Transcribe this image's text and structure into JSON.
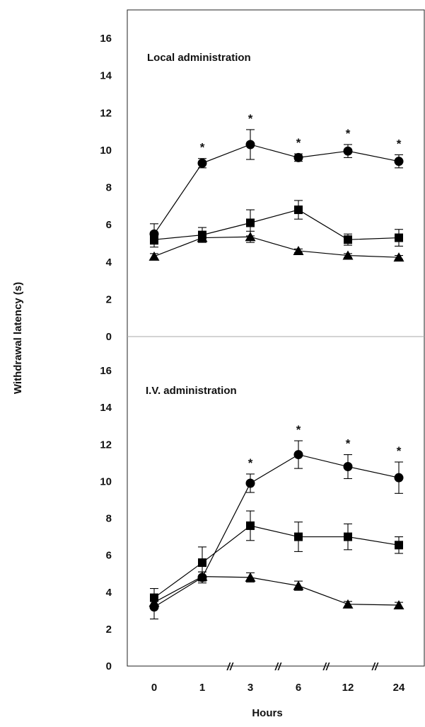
{
  "chart_data": {
    "type": "line",
    "xlabel": "Hours",
    "ylabel": "Withdrawal latency (s)",
    "categories": [
      "0",
      "1",
      "3",
      "6",
      "12",
      "24"
    ],
    "axis_break_marks": [
      "//",
      "//",
      "//",
      "//"
    ],
    "panels": [
      {
        "title": "Local administration",
        "ylim": [
          0,
          16
        ],
        "yticks": [
          0,
          2,
          4,
          6,
          8,
          10,
          12,
          14,
          16
        ],
        "series": [
          {
            "marker": "circle",
            "values": [
              5.5,
              9.3,
              10.3,
              9.6,
              9.95,
              9.4
            ],
            "err": [
              0.55,
              0.25,
              0.8,
              0.2,
              0.35,
              0.35
            ]
          },
          {
            "marker": "square",
            "values": [
              5.2,
              5.45,
              6.1,
              6.8,
              5.2,
              5.3
            ],
            "err": [
              0.4,
              0.4,
              0.7,
              0.5,
              0.3,
              0.45
            ]
          },
          {
            "marker": "triangle",
            "values": [
              4.3,
              5.3,
              5.35,
              4.6,
              4.35,
              4.25
            ],
            "err": [
              0.15,
              0.2,
              0.3,
              0.1,
              0.1,
              0.1
            ]
          }
        ],
        "significance": [
          "",
          "*",
          "*",
          "*",
          "*",
          "*"
        ]
      },
      {
        "title": "I.V. administration",
        "ylim": [
          0,
          16
        ],
        "yticks": [
          0,
          2,
          4,
          6,
          8,
          10,
          12,
          14,
          16
        ],
        "series": [
          {
            "marker": "circle",
            "values": [
              3.2,
              4.8,
              9.9,
              11.45,
              10.8,
              10.2
            ],
            "err": [
              0.65,
              0.3,
              0.5,
              0.75,
              0.65,
              0.85
            ]
          },
          {
            "marker": "square",
            "values": [
              3.7,
              5.6,
              7.6,
              7.0,
              7.0,
              6.55
            ],
            "err": [
              0.5,
              0.85,
              0.8,
              0.8,
              0.7,
              0.45
            ]
          },
          {
            "marker": "triangle",
            "values": [
              3.45,
              4.85,
              4.8,
              4.35,
              3.35,
              3.3
            ],
            "err": [
              0.3,
              0.25,
              0.25,
              0.25,
              0.15,
              0.15
            ]
          }
        ],
        "significance": [
          "",
          "",
          "*",
          "*",
          "*",
          "*"
        ]
      }
    ]
  }
}
